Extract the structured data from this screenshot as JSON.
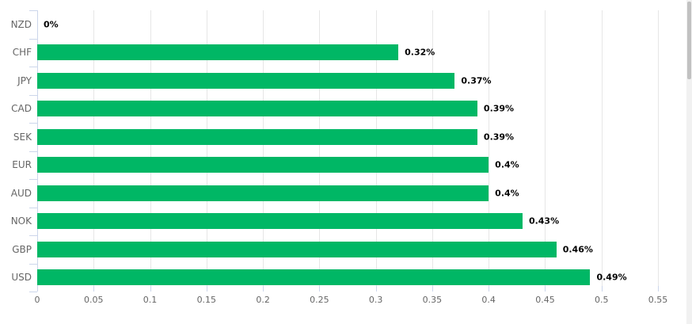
{
  "chart_data": {
    "type": "bar",
    "orientation": "horizontal",
    "title": "",
    "xlabel": "",
    "ylabel": "",
    "categories": [
      "NZD",
      "CHF",
      "JPY",
      "CAD",
      "SEK",
      "EUR",
      "AUD",
      "NOK",
      "GBP",
      "USD"
    ],
    "values": [
      0,
      0.32,
      0.37,
      0.39,
      0.39,
      0.4,
      0.4,
      0.43,
      0.46,
      0.49
    ],
    "value_labels": [
      "0%",
      "0.32%",
      "0.37%",
      "0.39%",
      "0.39%",
      "0.4%",
      "0.4%",
      "0.43%",
      "0.46%",
      "0.49%"
    ],
    "x_ticks": [
      0,
      0.05,
      0.1,
      0.15,
      0.2,
      0.25,
      0.3,
      0.35,
      0.4,
      0.45,
      0.5,
      0.55
    ],
    "x_tick_labels": [
      "0",
      "0.05",
      "0.1",
      "0.15",
      "0.2",
      "0.25",
      "0.3",
      "0.35",
      "0.4",
      "0.45",
      "0.5",
      "0.55"
    ],
    "xlim": [
      0,
      0.55
    ],
    "grid": true,
    "legend": "none",
    "colors": {
      "bar": "#00b765",
      "gridline": "#e6e6e6",
      "axis": "#ccd6eb",
      "tick_label": "#666666",
      "value_label": "#000000",
      "scrollbar_track": "#f1f1f1",
      "scrollbar_thumb": "#c1c1c1"
    }
  }
}
